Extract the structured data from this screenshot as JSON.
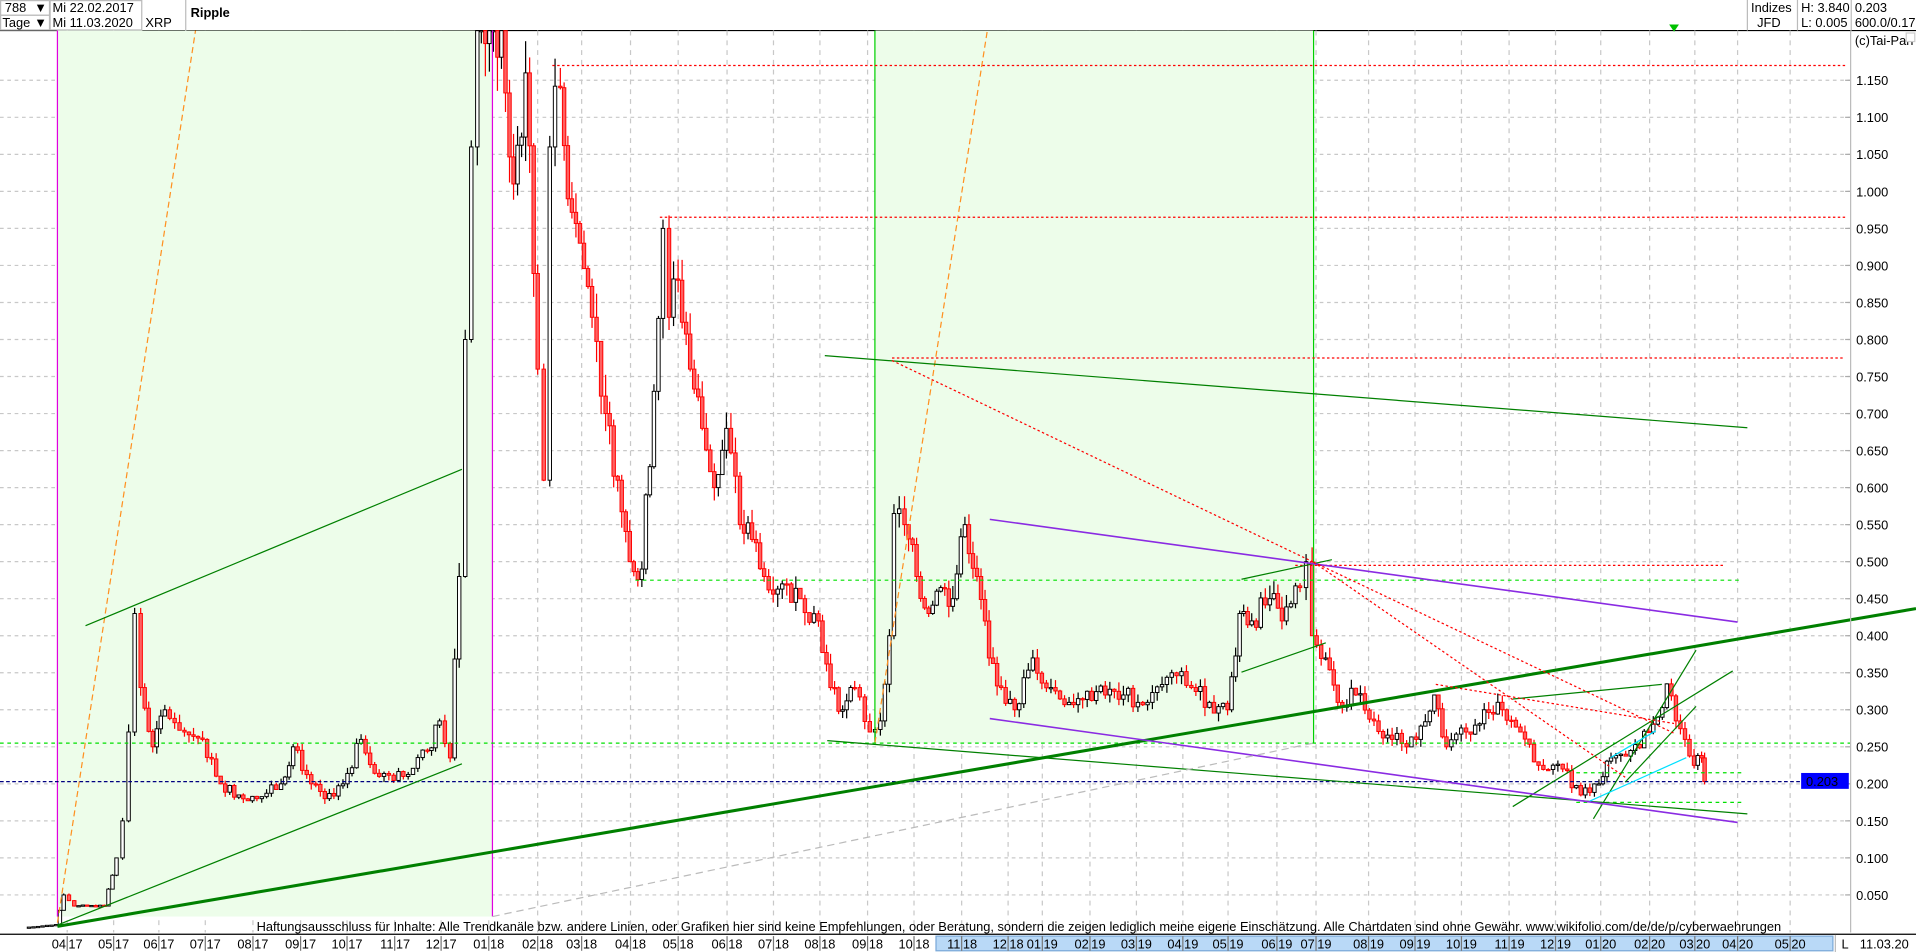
{
  "header": {
    "count_select": "788",
    "period_select": "Tage",
    "start_date": "Mi 22.02.2017",
    "end_date": "Mi 11.03.2020",
    "symbol": "XRP",
    "name": "Ripple",
    "market": "Indizes",
    "source": "JFD",
    "high": "H: 3.840",
    "low": "L: 0.005",
    "last": "0.203",
    "scale": "600.0/0.17",
    "copyright": "(c)Tai-Pan"
  },
  "footer": {
    "disclaimer": "Haftungsausschluss für Inhalte: Alle Trendkanäle bzw. andere Linien, oder Grafiken hier sind keine Empfehlungen, oder Beratung, sondern die zeigen lediglich meine eigene Einschätzung. Alle Chartdaten sind ohne Gewähr.  www.wikifolio.com/de/de/p/cyberwaehrungen",
    "scale_mode": "L",
    "last_date": "11.03.20"
  },
  "colors": {
    "up_candle": "#000000",
    "down_candle": "#ff0000",
    "channel_fill": "#edfdea",
    "trend_green": "#008000",
    "trend_purple": "#8a2be2",
    "resistance_red": "#ff0000",
    "support_green": "#00e000",
    "last_price_box": "#0000ff",
    "time_highlight": "#b9d9f7"
  },
  "chart_data": {
    "type": "candlestick",
    "title": "Ripple",
    "ylim": [
      0.03,
      1.217
    ],
    "grid": true,
    "yticks": [
      "0.050",
      "0.100",
      "0.150",
      "0.200",
      "0.250",
      "0.300",
      "0.350",
      "0.400",
      "0.450",
      "0.500",
      "0.550",
      "0.600",
      "0.650",
      "0.700",
      "0.750",
      "0.800",
      "0.850",
      "0.900",
      "0.950",
      "1.000",
      "1.050",
      "1.100",
      "1.150"
    ],
    "xticks": [
      "04 17",
      "05 17",
      "06 17",
      "07 17",
      "08 17",
      "09 17",
      "10 17",
      "11 17",
      "12 17",
      "01 18",
      "02 18",
      "03 18",
      "04 18",
      "05 18",
      "06 18",
      "07 18",
      "08 18",
      "09 18",
      "10 18",
      "11 18",
      "12 18",
      "01 19",
      "02 19",
      "03 19",
      "04 19",
      "05 19",
      "06 19",
      "07 19",
      "08 19",
      "09 19",
      "10 19",
      "11 19",
      "12 19",
      "01 20",
      "02 20",
      "03 20",
      "04 20",
      "05 20"
    ],
    "last_value_label": "0.203",
    "horizontal_levels": [
      1.17,
      0.965,
      0.775,
      0.495,
      0.475,
      0.255,
      0.215,
      0.175,
      0.203
    ],
    "closes": [
      [
        "2017-02-22",
        0.006
      ],
      [
        "2017-03-15",
        0.01
      ],
      [
        "2017-03-20",
        0.05
      ],
      [
        "2017-03-27",
        0.035
      ],
      [
        "2017-04-16",
        0.035
      ],
      [
        "2017-04-24",
        0.1
      ],
      [
        "2017-04-28",
        0.15
      ],
      [
        "2017-05-02",
        0.27
      ],
      [
        "2017-05-06",
        0.43
      ],
      [
        "2017-05-10",
        0.33
      ],
      [
        "2017-05-18",
        0.25
      ],
      [
        "2017-05-26",
        0.3
      ],
      [
        "2017-06-08",
        0.27
      ],
      [
        "2017-06-20",
        0.26
      ],
      [
        "2017-07-02",
        0.2
      ],
      [
        "2017-07-14",
        0.185
      ],
      [
        "2017-07-26",
        0.18
      ],
      [
        "2017-08-11",
        0.2
      ],
      [
        "2017-08-19",
        0.25
      ],
      [
        "2017-08-31",
        0.2
      ],
      [
        "2017-09-09",
        0.18
      ],
      [
        "2017-09-21",
        0.2
      ],
      [
        "2017-10-03",
        0.26
      ],
      [
        "2017-10-15",
        0.21
      ],
      [
        "2017-10-31",
        0.21
      ],
      [
        "2017-11-16",
        0.245
      ],
      [
        "2017-11-24",
        0.285
      ],
      [
        "2017-12-01",
        0.235
      ],
      [
        "2017-12-07",
        0.48
      ],
      [
        "2017-12-11",
        0.8
      ],
      [
        "2017-12-15",
        1.06
      ],
      [
        "2017-12-19",
        1.217
      ],
      [
        "2017-12-27",
        1.217
      ],
      [
        "2018-01-04",
        1.217
      ],
      [
        "2018-01-12",
        1.01
      ],
      [
        "2018-01-20",
        1.16
      ],
      [
        "2018-01-28",
        0.76
      ],
      [
        "2018-02-01",
        0.61
      ],
      [
        "2018-02-05",
        1.06
      ],
      [
        "2018-02-12",
        1.14
      ],
      [
        "2018-02-17",
        0.99
      ],
      [
        "2018-02-25",
        0.93
      ],
      [
        "2018-03-05",
        0.83
      ],
      [
        "2018-03-14",
        0.7
      ],
      [
        "2018-03-22",
        0.61
      ],
      [
        "2018-03-30",
        0.5
      ],
      [
        "2018-04-07",
        0.49
      ],
      [
        "2018-04-15",
        0.73
      ],
      [
        "2018-04-21",
        0.95
      ],
      [
        "2018-04-25",
        0.83
      ],
      [
        "2018-05-01",
        0.88
      ],
      [
        "2018-05-09",
        0.76
      ],
      [
        "2018-05-17",
        0.68
      ],
      [
        "2018-05-25",
        0.6
      ],
      [
        "2018-06-02",
        0.68
      ],
      [
        "2018-06-11",
        0.55
      ],
      [
        "2018-06-19",
        0.53
      ],
      [
        "2018-06-27",
        0.48
      ],
      [
        "2018-07-09",
        0.47
      ],
      [
        "2018-07-21",
        0.45
      ],
      [
        "2018-08-02",
        0.42
      ],
      [
        "2018-08-10",
        0.33
      ],
      [
        "2018-08-18",
        0.3
      ],
      [
        "2018-08-26",
        0.33
      ],
      [
        "2018-09-05",
        0.27
      ],
      [
        "2018-09-12",
        0.285
      ],
      [
        "2018-09-18",
        0.4
      ],
      [
        "2018-09-21",
        0.565
      ],
      [
        "2018-09-28",
        0.55
      ],
      [
        "2018-10-06",
        0.48
      ],
      [
        "2018-10-14",
        0.43
      ],
      [
        "2018-10-22",
        0.465
      ],
      [
        "2018-10-30",
        0.45
      ],
      [
        "2018-11-07",
        0.55
      ],
      [
        "2018-11-15",
        0.48
      ],
      [
        "2018-11-23",
        0.37
      ],
      [
        "2018-12-01",
        0.33
      ],
      [
        "2018-12-10",
        0.3
      ],
      [
        "2018-12-22",
        0.37
      ],
      [
        "2019-01-03",
        0.33
      ],
      [
        "2019-01-15",
        0.31
      ],
      [
        "2019-01-27",
        0.325
      ],
      [
        "2019-02-08",
        0.32
      ],
      [
        "2019-02-20",
        0.32
      ],
      [
        "2019-03-08",
        0.31
      ],
      [
        "2019-03-24",
        0.35
      ],
      [
        "2019-04-06",
        0.33
      ],
      [
        "2019-04-18",
        0.31
      ],
      [
        "2019-04-30",
        0.3
      ],
      [
        "2019-05-08",
        0.43
      ],
      [
        "2019-05-16",
        0.42
      ],
      [
        "2019-05-28",
        0.45
      ],
      [
        "2019-06-05",
        0.42
      ],
      [
        "2019-06-17",
        0.465
      ],
      [
        "2019-06-21",
        0.5
      ],
      [
        "2019-06-25",
        0.4
      ],
      [
        "2019-07-04",
        0.37
      ],
      [
        "2019-07-12",
        0.31
      ],
      [
        "2019-07-24",
        0.32
      ],
      [
        "2019-08-05",
        0.285
      ],
      [
        "2019-08-17",
        0.26
      ],
      [
        "2019-09-02",
        0.26
      ],
      [
        "2019-09-14",
        0.32
      ],
      [
        "2019-09-22",
        0.25
      ],
      [
        "2019-10-05",
        0.27
      ],
      [
        "2019-10-17",
        0.3
      ],
      [
        "2019-10-29",
        0.3
      ],
      [
        "2019-11-10",
        0.27
      ],
      [
        "2019-11-22",
        0.225
      ],
      [
        "2019-12-08",
        0.22
      ],
      [
        "2019-12-20",
        0.185
      ],
      [
        "2020-01-01",
        0.2
      ],
      [
        "2020-01-09",
        0.235
      ],
      [
        "2020-01-22",
        0.245
      ],
      [
        "2020-02-03",
        0.27
      ],
      [
        "2020-02-09",
        0.29
      ],
      [
        "2020-02-15",
        0.335
      ],
      [
        "2020-02-21",
        0.285
      ],
      [
        "2020-02-27",
        0.26
      ],
      [
        "2020-03-04",
        0.225
      ],
      [
        "2020-03-09",
        0.235
      ],
      [
        "2020-03-11",
        0.203
      ]
    ]
  }
}
